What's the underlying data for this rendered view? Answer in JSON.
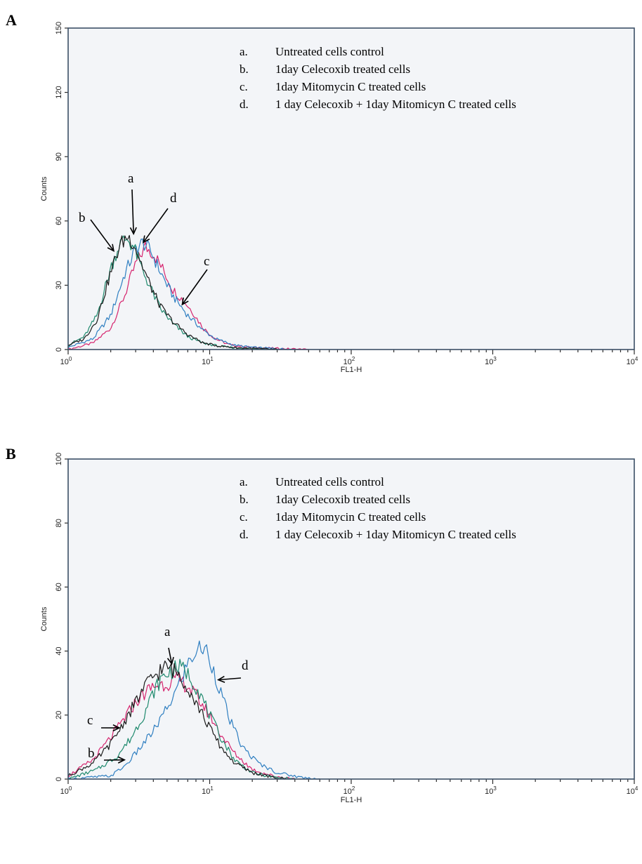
{
  "chart_data": [
    {
      "type": "line",
      "panel_label": "A",
      "xlabel": "FL1-H",
      "ylabel": "Counts",
      "x_scale": "log",
      "xlim": [
        1,
        10000
      ],
      "x_ticks": [
        {
          "base": "10",
          "exp": "0"
        },
        {
          "base": "10",
          "exp": "1"
        },
        {
          "base": "10",
          "exp": "2"
        },
        {
          "base": "10",
          "exp": "3"
        },
        {
          "base": "10",
          "exp": "4"
        }
      ],
      "ylim": [
        0,
        150
      ],
      "y_ticks": [
        "0",
        "30",
        "60",
        "90",
        "120",
        "150"
      ],
      "legend": [
        {
          "key": "a.",
          "text": "Untreated cells control"
        },
        {
          "key": "b.",
          "text": "1day Celecoxib treated cells"
        },
        {
          "key": "c.",
          "text": "1day Mitomycin C treated cells"
        },
        {
          "key": "d.",
          "text": "1 day Celecoxib + 1day Mitomicyn C treated cells"
        }
      ],
      "series": [
        {
          "id": "a",
          "color": "#1a1a1a",
          "x": [
            1.0,
            1.3,
            1.6,
            2.0,
            2.3,
            2.6,
            2.9,
            3.3,
            3.8,
            4.5,
            5.5,
            7.0,
            9.0,
            12.0,
            16.0,
            22.0,
            30.0
          ],
          "y": [
            2,
            5,
            14,
            36,
            48,
            53,
            50,
            40,
            30,
            20,
            13,
            7,
            3,
            1.5,
            0.8,
            0.4,
            0
          ]
        },
        {
          "id": "b",
          "color": "#1f8a6e",
          "x": [
            1.0,
            1.3,
            1.6,
            2.0,
            2.3,
            2.6,
            2.9,
            3.3,
            3.8,
            4.5,
            5.5,
            7.0,
            9.0,
            12.0,
            16.0,
            22.0,
            30.0
          ],
          "y": [
            2,
            6,
            16,
            38,
            49,
            52,
            48,
            38,
            29,
            19,
            12,
            6,
            3,
            1.4,
            0.7,
            0.3,
            0
          ]
        },
        {
          "id": "c",
          "color": "#d6246e",
          "x": [
            1.0,
            1.5,
            2.0,
            2.5,
            3.0,
            3.5,
            4.0,
            4.8,
            5.5,
            6.5,
            7.5,
            9.0,
            11.0,
            14.0,
            20.0,
            30.0,
            50.0
          ],
          "y": [
            0,
            3,
            10,
            25,
            40,
            48,
            45,
            36,
            28,
            23,
            18,
            10,
            5,
            2,
            1,
            0.5,
            0
          ]
        },
        {
          "id": "d",
          "color": "#2f7fc1",
          "x": [
            1.0,
            1.5,
            2.0,
            2.5,
            3.0,
            3.4,
            3.9,
            4.5,
            5.5,
            7.0,
            9.0,
            11.0,
            15.0,
            20.0,
            30.0,
            40.0
          ],
          "y": [
            1,
            5,
            16,
            35,
            47,
            50,
            45,
            36,
            25,
            16,
            9,
            5,
            2,
            1,
            0.4,
            0
          ]
        }
      ],
      "annotations": [
        {
          "label": "a",
          "target_x": 2.9,
          "target_y": 54
        },
        {
          "label": "b",
          "target_x": 2.1,
          "target_y": 46
        },
        {
          "label": "c",
          "target_x": 6.4,
          "target_y": 21
        },
        {
          "label": "d",
          "target_x": 3.4,
          "target_y": 50
        }
      ]
    },
    {
      "type": "line",
      "panel_label": "B",
      "xlabel": "FL1-H",
      "ylabel": "Counts",
      "x_scale": "log",
      "xlim": [
        1,
        10000
      ],
      "x_ticks": [
        {
          "base": "10",
          "exp": "0"
        },
        {
          "base": "10",
          "exp": "1"
        },
        {
          "base": "10",
          "exp": "2"
        },
        {
          "base": "10",
          "exp": "3"
        },
        {
          "base": "10",
          "exp": "4"
        }
      ],
      "ylim": [
        0,
        100
      ],
      "y_ticks": [
        "0",
        "20",
        "40",
        "60",
        "80",
        "100"
      ],
      "legend": [
        {
          "key": "a.",
          "text": "Untreated cells control"
        },
        {
          "key": "b.",
          "text": "1day Celecoxib treated cells"
        },
        {
          "key": "c.",
          "text": "1day Mitomycin C treated cells"
        },
        {
          "key": "d.",
          "text": "1 day Celecoxib + 1day Mitomicyn C treated cells"
        }
      ],
      "series": [
        {
          "id": "a",
          "color": "#1a1a1a",
          "x": [
            1.0,
            1.5,
            2.0,
            2.5,
            3.0,
            3.5,
            4.0,
            4.5,
            5.0,
            5.5,
            6.0,
            7.0,
            8.0,
            10.0,
            12.0,
            15.0,
            20.0,
            28.0,
            35.0
          ],
          "y": [
            1,
            5,
            11,
            18,
            24,
            29,
            32,
            34,
            35,
            34,
            33,
            29,
            24,
            16,
            10,
            5,
            2,
            0.5,
            0
          ]
        },
        {
          "id": "b",
          "color": "#1f8a6e",
          "x": [
            1.0,
            1.6,
            2.2,
            2.8,
            3.4,
            4.0,
            4.5,
            5.0,
            5.5,
            6.0,
            6.7,
            7.5,
            8.5,
            10.0,
            12.0,
            15.0,
            20.0,
            28.0,
            40.0
          ],
          "y": [
            0,
            3,
            7,
            13,
            20,
            27,
            31,
            33,
            34,
            35,
            34,
            31,
            27,
            20,
            13,
            6,
            2,
            0.6,
            0
          ]
        },
        {
          "id": "c",
          "color": "#d6246e",
          "x": [
            1.0,
            1.5,
            2.0,
            2.5,
            3.0,
            3.5,
            4.0,
            5.0,
            6.0,
            7.0,
            8.0,
            10.0,
            12.0,
            15.0,
            20.0,
            28.0,
            40.0
          ],
          "y": [
            1,
            6,
            13,
            19,
            24,
            27,
            29,
            30,
            31,
            29,
            26,
            20,
            14,
            8,
            3,
            1,
            0
          ]
        },
        {
          "id": "d",
          "color": "#2f7fc1",
          "x": [
            1.0,
            2.0,
            2.5,
            3.0,
            4.0,
            5.0,
            6.0,
            7.0,
            8.0,
            8.8,
            9.5,
            10.5,
            12.0,
            14.0,
            17.0,
            22.0,
            30.0,
            45.0,
            60.0
          ],
          "y": [
            0,
            1,
            4,
            8,
            15,
            22,
            29,
            36,
            40,
            41,
            40,
            35,
            27,
            18,
            10,
            5,
            2,
            0.5,
            0
          ]
        }
      ],
      "annotations": [
        {
          "label": "a",
          "target_x": 5.4,
          "target_y": 36
        },
        {
          "label": "b",
          "target_x": 2.5,
          "target_y": 6
        },
        {
          "label": "c",
          "target_x": 2.3,
          "target_y": 16
        },
        {
          "label": "d",
          "target_x": 11.5,
          "target_y": 31
        }
      ]
    }
  ]
}
